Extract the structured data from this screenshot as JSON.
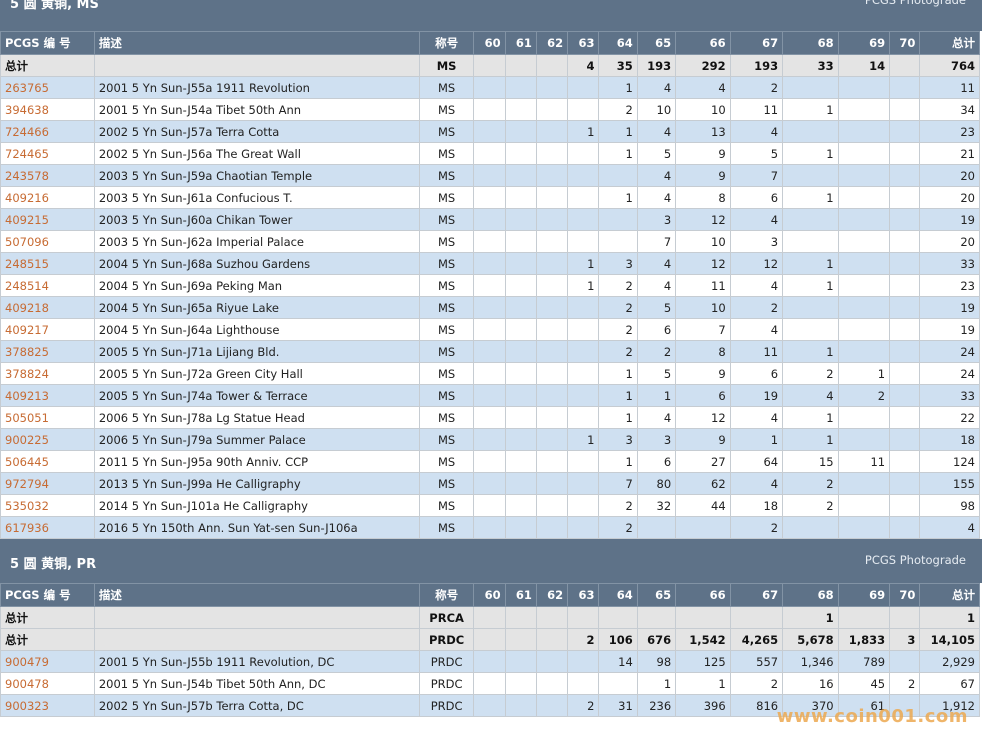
{
  "columns": [
    "PCGS 编 号",
    "描述",
    "称号",
    "60",
    "61",
    "62",
    "63",
    "64",
    "65",
    "66",
    "67",
    "68",
    "69",
    "70",
    "总计"
  ],
  "sections": [
    {
      "title": "5 圆 黄铜, MS",
      "brand": "PCGS Photograde",
      "totals": [
        {
          "label": "总计",
          "designation": "MS",
          "grades": [
            "",
            "",
            "",
            "4",
            "35",
            "193",
            "292",
            "193",
            "33",
            "14",
            ""
          ],
          "total": "764"
        }
      ],
      "rows": [
        {
          "pcgs": "263765",
          "desc": "2001 5 Yn Sun-J55a 1911 Revolution",
          "designation": "MS",
          "grades": [
            "",
            "",
            "",
            "",
            "1",
            "4",
            "4",
            "2",
            "",
            "",
            ""
          ],
          "total": "11"
        },
        {
          "pcgs": "394638",
          "desc": "2001 5 Yn Sun-J54a Tibet 50th Ann",
          "designation": "MS",
          "grades": [
            "",
            "",
            "",
            "",
            "2",
            "10",
            "10",
            "11",
            "1",
            "",
            ""
          ],
          "total": "34"
        },
        {
          "pcgs": "724466",
          "desc": "2002 5 Yn Sun-J57a Terra Cotta",
          "designation": "MS",
          "grades": [
            "",
            "",
            "",
            "1",
            "1",
            "4",
            "13",
            "4",
            "",
            "",
            ""
          ],
          "total": "23"
        },
        {
          "pcgs": "724465",
          "desc": "2002 5 Yn Sun-J56a The Great Wall",
          "designation": "MS",
          "grades": [
            "",
            "",
            "",
            "",
            "1",
            "5",
            "9",
            "5",
            "1",
            "",
            ""
          ],
          "total": "21"
        },
        {
          "pcgs": "243578",
          "desc": "2003 5 Yn Sun-J59a Chaotian Temple",
          "designation": "MS",
          "grades": [
            "",
            "",
            "",
            "",
            "",
            "4",
            "9",
            "7",
            "",
            "",
            ""
          ],
          "total": "20"
        },
        {
          "pcgs": "409216",
          "desc": "2003 5 Yn Sun-J61a Confucious T.",
          "designation": "MS",
          "grades": [
            "",
            "",
            "",
            "",
            "1",
            "4",
            "8",
            "6",
            "1",
            "",
            ""
          ],
          "total": "20"
        },
        {
          "pcgs": "409215",
          "desc": "2003 5 Yn Sun-J60a Chikan Tower",
          "designation": "MS",
          "grades": [
            "",
            "",
            "",
            "",
            "",
            "3",
            "12",
            "4",
            "",
            "",
            ""
          ],
          "total": "19"
        },
        {
          "pcgs": "507096",
          "desc": "2003 5 Yn Sun-J62a Imperial Palace",
          "designation": "MS",
          "grades": [
            "",
            "",
            "",
            "",
            "",
            "7",
            "10",
            "3",
            "",
            "",
            ""
          ],
          "total": "20"
        },
        {
          "pcgs": "248515",
          "desc": "2004 5 Yn Sun-J68a Suzhou Gardens",
          "designation": "MS",
          "grades": [
            "",
            "",
            "",
            "1",
            "3",
            "4",
            "12",
            "12",
            "1",
            "",
            ""
          ],
          "total": "33"
        },
        {
          "pcgs": "248514",
          "desc": "2004 5 Yn Sun-J69a Peking Man",
          "designation": "MS",
          "grades": [
            "",
            "",
            "",
            "1",
            "2",
            "4",
            "11",
            "4",
            "1",
            "",
            ""
          ],
          "total": "23"
        },
        {
          "pcgs": "409218",
          "desc": "2004 5 Yn Sun-J65a Riyue Lake",
          "designation": "MS",
          "grades": [
            "",
            "",
            "",
            "",
            "2",
            "5",
            "10",
            "2",
            "",
            "",
            ""
          ],
          "total": "19"
        },
        {
          "pcgs": "409217",
          "desc": "2004 5 Yn Sun-J64a Lighthouse",
          "designation": "MS",
          "grades": [
            "",
            "",
            "",
            "",
            "2",
            "6",
            "7",
            "4",
            "",
            "",
            ""
          ],
          "total": "19"
        },
        {
          "pcgs": "378825",
          "desc": "2005 5 Yn Sun-J71a Lijiang Bld.",
          "designation": "MS",
          "grades": [
            "",
            "",
            "",
            "",
            "2",
            "2",
            "8",
            "11",
            "1",
            "",
            ""
          ],
          "total": "24"
        },
        {
          "pcgs": "378824",
          "desc": "2005 5 Yn Sun-J72a Green City Hall",
          "designation": "MS",
          "grades": [
            "",
            "",
            "",
            "",
            "1",
            "5",
            "9",
            "6",
            "2",
            "1",
            ""
          ],
          "total": "24"
        },
        {
          "pcgs": "409213",
          "desc": "2005 5 Yn Sun-J74a Tower & Terrace",
          "designation": "MS",
          "grades": [
            "",
            "",
            "",
            "",
            "1",
            "1",
            "6",
            "19",
            "4",
            "2",
            ""
          ],
          "total": "33"
        },
        {
          "pcgs": "505051",
          "desc": "2006 5 Yn Sun-J78a Lg Statue Head",
          "designation": "MS",
          "grades": [
            "",
            "",
            "",
            "",
            "1",
            "4",
            "12",
            "4",
            "1",
            "",
            ""
          ],
          "total": "22"
        },
        {
          "pcgs": "900225",
          "desc": "2006 5 Yn Sun-J79a Summer Palace",
          "designation": "MS",
          "grades": [
            "",
            "",
            "",
            "1",
            "3",
            "3",
            "9",
            "1",
            "1",
            "",
            ""
          ],
          "total": "18"
        },
        {
          "pcgs": "506445",
          "desc": "2011 5 Yn Sun-J95a 90th Anniv. CCP",
          "designation": "MS",
          "grades": [
            "",
            "",
            "",
            "",
            "1",
            "6",
            "27",
            "64",
            "15",
            "11",
            ""
          ],
          "total": "124"
        },
        {
          "pcgs": "972794",
          "desc": "2013 5 Yn Sun-J99a He Calligraphy",
          "designation": "MS",
          "grades": [
            "",
            "",
            "",
            "",
            "7",
            "80",
            "62",
            "4",
            "2",
            "",
            ""
          ],
          "total": "155"
        },
        {
          "pcgs": "535032",
          "desc": "2014 5 Yn Sun-J101a He Calligraphy",
          "designation": "MS",
          "grades": [
            "",
            "",
            "",
            "",
            "2",
            "32",
            "44",
            "18",
            "2",
            "",
            ""
          ],
          "total": "98"
        },
        {
          "pcgs": "617936",
          "desc": "2016 5 Yn 150th Ann. Sun Yat-sen Sun-J106a",
          "designation": "MS",
          "grades": [
            "",
            "",
            "",
            "",
            "2",
            "",
            "",
            "2",
            "",
            "",
            ""
          ],
          "total": "4"
        }
      ]
    },
    {
      "title": "5 圆 黄铜, PR",
      "brand": "PCGS Photograde",
      "totals": [
        {
          "label": "总计",
          "designation": "PRCA",
          "grades": [
            "",
            "",
            "",
            "",
            "",
            "",
            "",
            "",
            "1",
            "",
            ""
          ],
          "total": "1"
        },
        {
          "label": "总计",
          "designation": "PRDC",
          "grades": [
            "",
            "",
            "",
            "2",
            "106",
            "676",
            "1,542",
            "4,265",
            "5,678",
            "1,833",
            "3"
          ],
          "total": "14,105"
        }
      ],
      "rows": [
        {
          "pcgs": "900479",
          "desc": "2001 5 Yn Sun-J55b 1911 Revolution, DC",
          "designation": "PRDC",
          "grades": [
            "",
            "",
            "",
            "",
            "14",
            "98",
            "125",
            "557",
            "1,346",
            "789",
            ""
          ],
          "total": "2,929"
        },
        {
          "pcgs": "900478",
          "desc": "2001 5 Yn Sun-J54b Tibet 50th Ann, DC",
          "designation": "PRDC",
          "grades": [
            "",
            "",
            "",
            "",
            "",
            "1",
            "1",
            "2",
            "16",
            "45",
            "2"
          ],
          "total": "67"
        },
        {
          "pcgs": "900323",
          "desc": "2002 5 Yn Sun-J57b Terra Cotta, DC",
          "designation": "PRDC",
          "grades": [
            "",
            "",
            "",
            "2",
            "31",
            "236",
            "396",
            "816",
            "370",
            "61",
            ""
          ],
          "total": "1,912"
        }
      ]
    }
  ],
  "watermark": "www.coin001.com"
}
